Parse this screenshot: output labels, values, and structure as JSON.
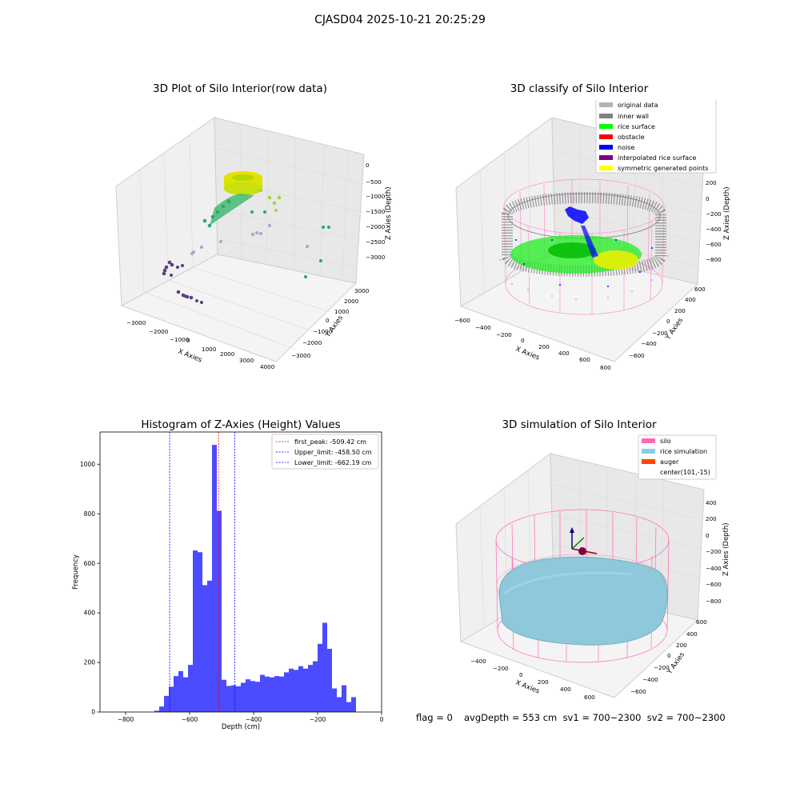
{
  "suptitle": "CJASD04 2025-10-21 20:25:29",
  "colors": {
    "original": "#b4b4b4",
    "inner_wall": "#808080",
    "rice_surface": "#00ff00",
    "obstacle": "#ff0000",
    "noise": "#0000ff",
    "interpolated": "#800080",
    "symmetric": "#ffff00",
    "silo": "#ff69b4",
    "rice_sim": "#87ceeb",
    "auger": "#ff4500",
    "hist_bar": "#4b4bff"
  },
  "panel1": {
    "title": "3D Plot of Silo Interior(row data)",
    "xlabel": "X Axies",
    "ylabel": "Y Axies",
    "zlabel": "Z Axies (Depth)",
    "xticks": [
      "−3000",
      "−2000",
      "−1000",
      "0",
      "1000",
      "2000",
      "3000",
      "4000"
    ],
    "yticks": [
      "3000",
      "2000",
      "1000",
      "0",
      "−1000",
      "−2000",
      "−3000"
    ],
    "zticks": [
      "0",
      "−500",
      "−1000",
      "−1500",
      "−2000",
      "−2500",
      "−3000"
    ]
  },
  "panel2": {
    "title": "3D classify of Silo Interior",
    "legend": [
      "original data",
      "inner wall",
      "rice surface",
      "obstacle",
      "noise",
      "interpolated rice surface",
      "symmetric generated points"
    ],
    "xlabel": "X Axies",
    "ylabel": "Y Axies",
    "zlabel": "Z Axies (Depth)",
    "xticks": [
      "−600",
      "−400",
      "−200",
      "0",
      "200",
      "400",
      "600",
      "800"
    ],
    "yticks": [
      "600",
      "400",
      "200",
      "0",
      "−200",
      "−400",
      "−600"
    ],
    "zticks": [
      "200",
      "0",
      "−200",
      "−400",
      "−600",
      "−800"
    ]
  },
  "panel4": {
    "title": "3D simulation of Silo Interior",
    "legend": [
      "silo",
      "rice simulation",
      "auger",
      "center(101,-15)"
    ],
    "xlabel": "X Axies",
    "ylabel": "Y Axies",
    "zlabel": "Z Axies (Depth)",
    "xticks": [
      "−400",
      "−200",
      "0",
      "200",
      "400",
      "600"
    ],
    "yticks": [
      "600",
      "400",
      "200",
      "0",
      "−200",
      "−400",
      "−600"
    ],
    "zticks": [
      "400",
      "200",
      "0",
      "−200",
      "−400",
      "−600",
      "−800"
    ]
  },
  "footer": {
    "flag": "flag = 0",
    "avg": "avgDepth = 553 cm  sv1 = 700~2300  sv2 = 700~2300"
  },
  "chart_data": {
    "type": "bar",
    "title": "Histogram of Z-Axies (Height) Values",
    "xlabel": "Depth (cm)",
    "ylabel": "Frequency",
    "xlim": [
      -880,
      0
    ],
    "ylim": [
      0,
      1130
    ],
    "xticks": [
      -800,
      -600,
      -400,
      -200,
      0
    ],
    "xtick_labels": [
      "−800",
      "−600",
      "−400",
      "−200",
      "0"
    ],
    "yticks": [
      0,
      200,
      400,
      600,
      800,
      1000
    ],
    "bin_width": 15,
    "bin_starts": [
      -710,
      -695,
      -680,
      -665,
      -650,
      -635,
      -620,
      -605,
      -590,
      -575,
      -560,
      -545,
      -530,
      -515,
      -500,
      -485,
      -470,
      -455,
      -440,
      -425,
      -410,
      -395,
      -380,
      -365,
      -350,
      -335,
      -320,
      -305,
      -290,
      -275,
      -260,
      -245,
      -230,
      -215,
      -200,
      -185,
      -170,
      -155,
      -140,
      -125,
      -110,
      -95,
      -80,
      -65,
      -50,
      -35,
      -20,
      -5
    ],
    "values": [
      5,
      22,
      65,
      102,
      145,
      165,
      140,
      190,
      652,
      645,
      512,
      530,
      1078,
      812,
      130,
      105,
      108,
      104,
      118,
      132,
      125,
      122,
      150,
      143,
      140,
      145,
      143,
      160,
      175,
      170,
      185,
      175,
      190,
      205,
      275,
      360,
      255,
      95,
      60,
      108,
      40,
      60,
      0,
      0,
      0,
      0,
      0,
      0
    ],
    "vlines": [
      {
        "label": "first_peak: -509.42 cm",
        "x": -509.42,
        "color": "#ff0000"
      },
      {
        "label": "Upper_limit: -458.50 cm",
        "x": -458.5,
        "color": "#0000ff"
      },
      {
        "label": "Lower_limit: -662.19 cm",
        "x": -662.19,
        "color": "#0000ff"
      }
    ]
  }
}
